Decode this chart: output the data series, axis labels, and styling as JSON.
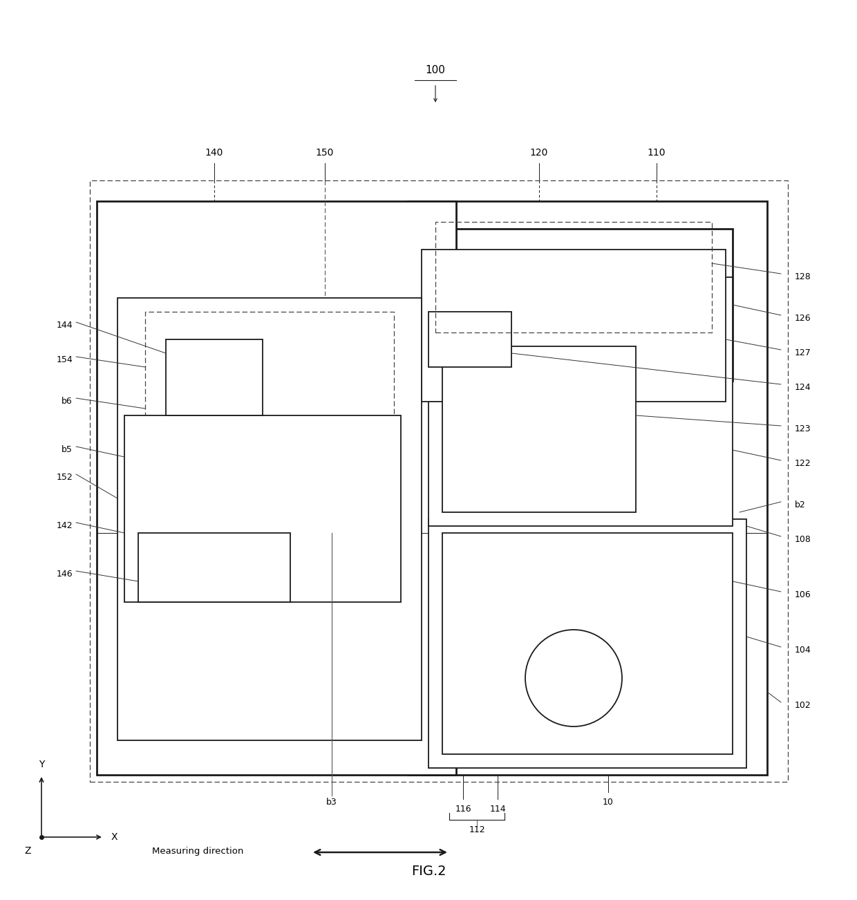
{
  "fig_width": 12.4,
  "fig_height": 13.02,
  "bg_color": "#ffffff",
  "label_100": "100",
  "label_140": "140",
  "label_150": "150",
  "label_120": "120",
  "label_110": "110",
  "label_128": "128",
  "label_126": "126",
  "label_127": "127",
  "label_124": "124",
  "label_122": "122",
  "label_123": "123",
  "label_b2": "b2",
  "label_108": "108",
  "label_106": "106",
  "label_104": "104",
  "label_102": "102",
  "label_154": "154",
  "label_b6": "b6",
  "label_152": "152",
  "label_144": "144",
  "label_b5": "b5",
  "label_142": "142",
  "label_146": "146",
  "label_b3": "b3",
  "label_116": "116",
  "label_114": "114",
  "label_10": "10",
  "label_112": "112",
  "fig_label": "FIG.2",
  "measuring_direction": "Measuring direction",
  "axis_x": "X",
  "axis_y": "Y",
  "axis_z": "Z"
}
